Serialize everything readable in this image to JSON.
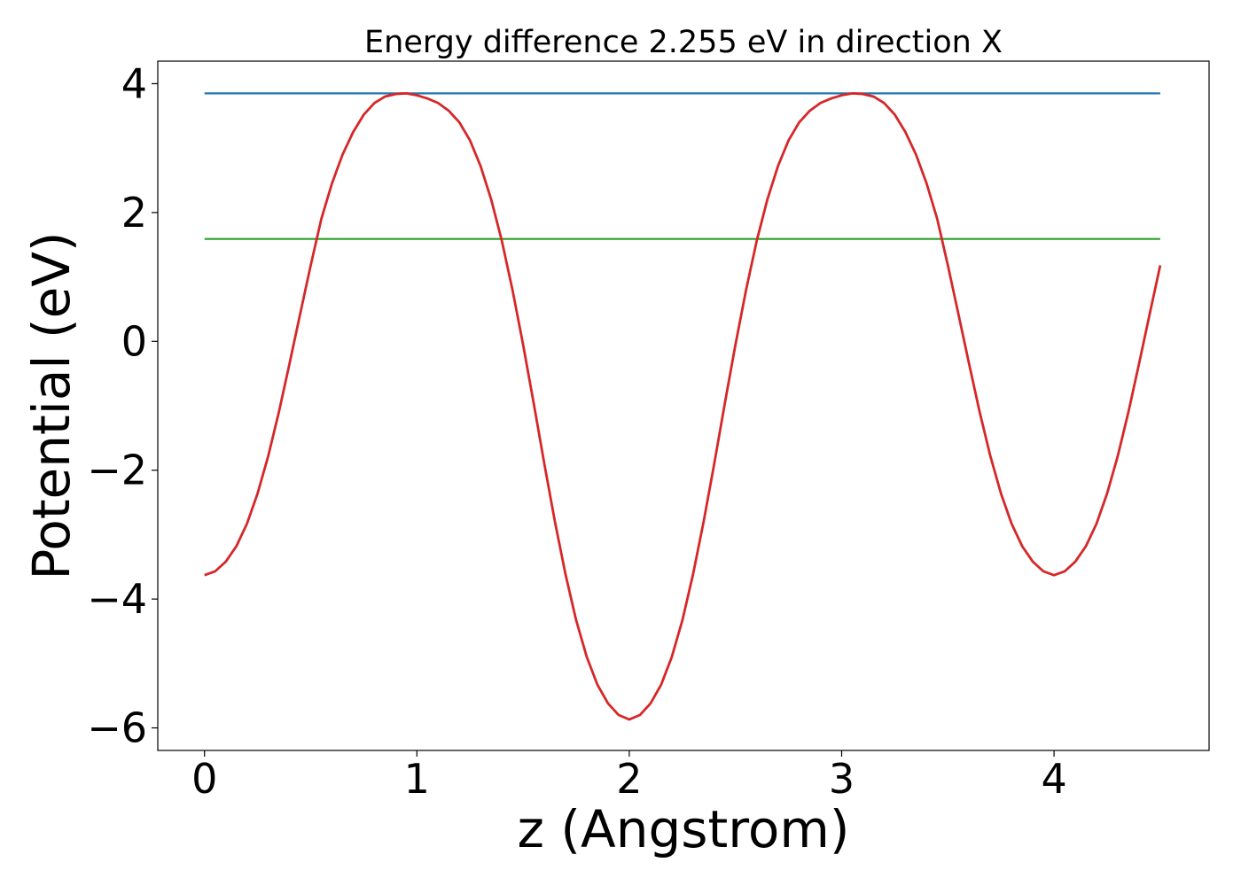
{
  "chart_data": {
    "type": "line",
    "title": "Energy difference 2.255 eV in direction X",
    "xlabel": "z (Angstrom)",
    "ylabel": "Potential (eV)",
    "xlim": [
      -0.22,
      4.73
    ],
    "ylim": [
      -6.35,
      4.35
    ],
    "xticks": [
      0,
      1,
      2,
      3,
      4
    ],
    "xtick_labels": [
      "0",
      "1",
      "2",
      "3",
      "4"
    ],
    "yticks": [
      -6,
      -4,
      -2,
      0,
      2,
      4
    ],
    "ytick_labels": [
      "−6",
      "−4",
      "−2",
      "0",
      "2",
      "4"
    ],
    "grid": false,
    "series": [
      {
        "color": "#1f77b4",
        "x": [
          0,
          4.5
        ],
        "y": [
          3.85,
          3.85
        ]
      },
      {
        "color": "#2ca02c",
        "x": [
          0,
          4.5
        ],
        "y": [
          1.59,
          1.59
        ]
      },
      {
        "color": "#d62728",
        "x": [
          0.0,
          0.05,
          0.1,
          0.15,
          0.2,
          0.25,
          0.3,
          0.35,
          0.4,
          0.45,
          0.5,
          0.55,
          0.6,
          0.65,
          0.7,
          0.75,
          0.8,
          0.85,
          0.9,
          0.95,
          1.0,
          1.05,
          1.1,
          1.15,
          1.2,
          1.25,
          1.3,
          1.35,
          1.4,
          1.45,
          1.5,
          1.55,
          1.6,
          1.65,
          1.7,
          1.75,
          1.8,
          1.85,
          1.9,
          1.95,
          2.0,
          2.05,
          2.1,
          2.15,
          2.2,
          2.25,
          2.3,
          2.35,
          2.4,
          2.45,
          2.5,
          2.55,
          2.6,
          2.65,
          2.7,
          2.75,
          2.8,
          2.85,
          2.9,
          2.95,
          3.0,
          3.05,
          3.1,
          3.15,
          3.2,
          3.25,
          3.3,
          3.35,
          3.4,
          3.45,
          3.5,
          3.55,
          3.6,
          3.65,
          3.7,
          3.75,
          3.8,
          3.85,
          3.9,
          3.95,
          4.0,
          4.05,
          4.1,
          4.15,
          4.2,
          4.25,
          4.3,
          4.35,
          4.4,
          4.45,
          4.5
        ],
        "y": [
          -3.63,
          -3.57,
          -3.42,
          -3.18,
          -2.83,
          -2.36,
          -1.78,
          -1.1,
          -0.35,
          0.42,
          1.18,
          1.9,
          2.45,
          2.9,
          3.25,
          3.52,
          3.7,
          3.8,
          3.84,
          3.85,
          3.82,
          3.77,
          3.7,
          3.58,
          3.4,
          3.12,
          2.72,
          2.2,
          1.56,
          0.8,
          -0.05,
          -0.96,
          -1.9,
          -2.8,
          -3.62,
          -4.33,
          -4.9,
          -5.33,
          -5.62,
          -5.8,
          -5.87,
          -5.8,
          -5.62,
          -5.33,
          -4.9,
          -4.33,
          -3.62,
          -2.8,
          -1.9,
          -0.96,
          -0.05,
          0.8,
          1.56,
          2.2,
          2.72,
          3.12,
          3.4,
          3.58,
          3.7,
          3.77,
          3.82,
          3.85,
          3.84,
          3.8,
          3.7,
          3.52,
          3.25,
          2.9,
          2.45,
          1.9,
          1.18,
          0.42,
          -0.35,
          -1.1,
          -1.78,
          -2.36,
          -2.83,
          -3.18,
          -3.42,
          -3.57,
          -3.63,
          -3.57,
          -3.42,
          -3.18,
          -2.83,
          -2.36,
          -1.78,
          -1.1,
          -0.35,
          0.42,
          1.18
        ]
      }
    ]
  }
}
